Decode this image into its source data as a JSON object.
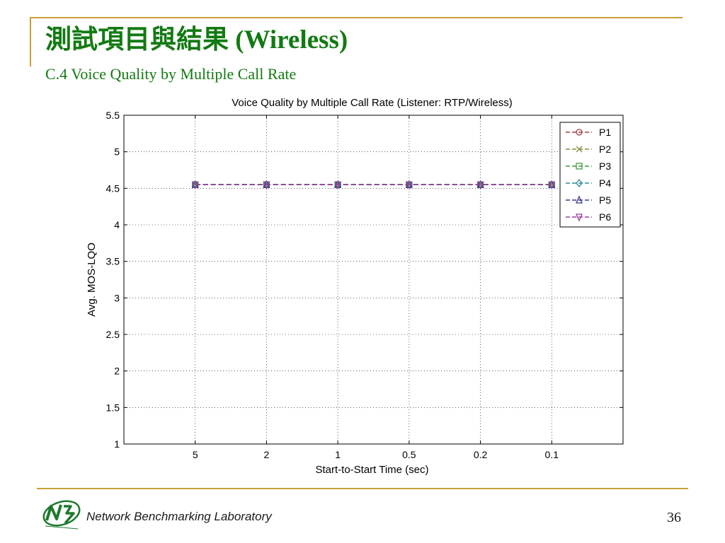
{
  "slide": {
    "title": "測試項目與結果 (Wireless)",
    "subtitle": "C.4 Voice Quality by Multiple Call Rate",
    "accent_color": "#c8a033",
    "title_color": "#127a12"
  },
  "footer": {
    "lab_name": "Network Benchmarking Laboratory",
    "page_number": "36",
    "logo_text": "NBL"
  },
  "chart_data": {
    "type": "line",
    "title": "Voice Quality by Multiple Call Rate (Listener: RTP/Wireless)",
    "xlabel": "Start-to-Start Time (sec)",
    "ylabel": "Avg. MOS-LQO",
    "categories": [
      "5",
      "2",
      "1",
      "0.5",
      "0.2",
      "0.1"
    ],
    "ylim": [
      1,
      5.5
    ],
    "yticks": [
      "1",
      "1.5",
      "2",
      "2.5",
      "3",
      "3.5",
      "4",
      "4.5",
      "5",
      "5.5"
    ],
    "grid": true,
    "legend_position": "top-right",
    "series": [
      {
        "name": "P1",
        "color": "#a03c3c",
        "marker": "circle",
        "values": [
          4.55,
          4.55,
          4.55,
          4.55,
          4.55,
          4.55
        ]
      },
      {
        "name": "P2",
        "color": "#8a8a3a",
        "marker": "x",
        "values": [
          4.55,
          4.55,
          4.55,
          4.55,
          4.55,
          4.55
        ]
      },
      {
        "name": "P3",
        "color": "#3f9a3f",
        "marker": "square",
        "values": [
          4.55,
          4.55,
          4.55,
          4.55,
          4.55,
          4.55
        ]
      },
      {
        "name": "P4",
        "color": "#2f8c8c",
        "marker": "diamond",
        "values": [
          4.55,
          4.55,
          4.55,
          4.55,
          4.55,
          4.55
        ]
      },
      {
        "name": "P5",
        "color": "#3a3a8c",
        "marker": "triangle-up",
        "values": [
          4.55,
          4.55,
          4.55,
          4.55,
          4.55,
          4.55
        ]
      },
      {
        "name": "P6",
        "color": "#9a3f9a",
        "marker": "triangle-down",
        "values": [
          4.55,
          4.55,
          4.55,
          4.55,
          4.55,
          4.55
        ]
      }
    ]
  }
}
